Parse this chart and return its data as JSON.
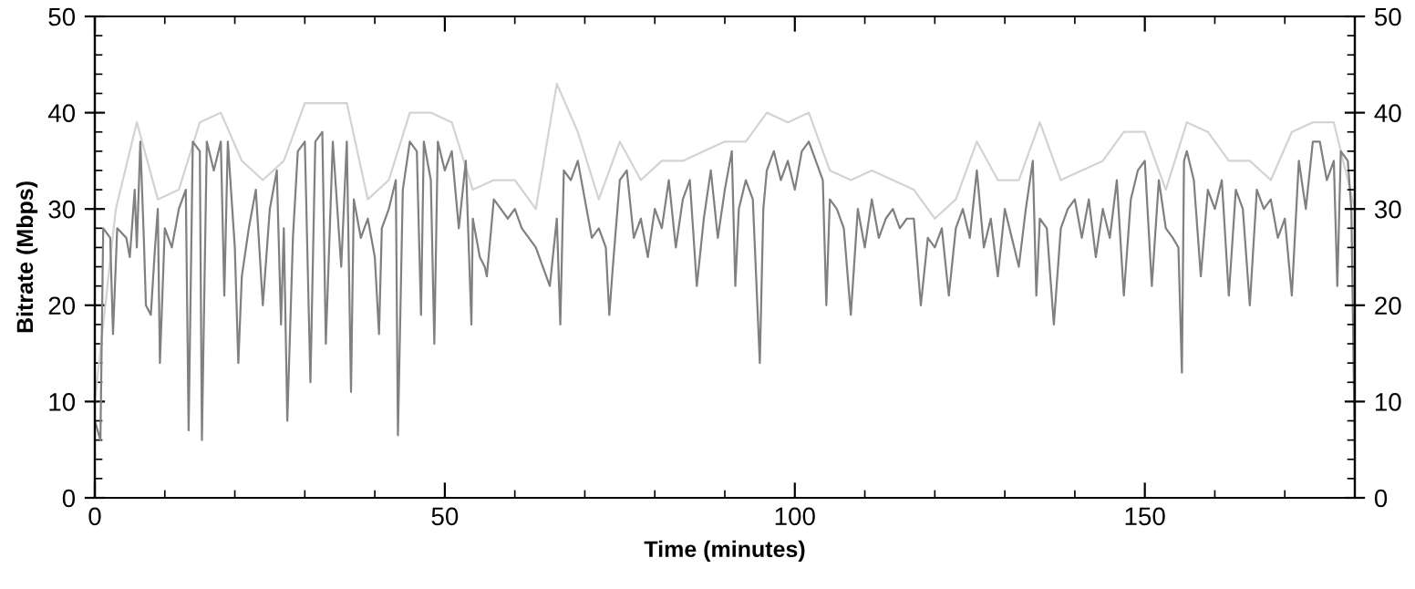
{
  "chart_data": {
    "type": "line",
    "xlabel": "Time (minutes)",
    "ylabel": "Bitrate (Mbps)",
    "xlim": [
      0,
      180
    ],
    "xticks": [
      0,
      50,
      100,
      150
    ],
    "ylim": [
      0,
      50
    ],
    "yticks": [
      0,
      10,
      20,
      30,
      40,
      50
    ],
    "y2lim": [
      0,
      50
    ],
    "y2ticks": [
      0,
      10,
      20,
      30,
      40,
      50
    ],
    "grid": false,
    "line_style": "solid",
    "marker": "none",
    "series": [
      {
        "color": "#d3d3d3",
        "x": [
          0,
          3,
          6,
          9,
          12,
          15,
          18,
          21,
          24,
          27,
          30,
          33,
          36,
          39,
          42,
          45,
          48,
          51,
          54,
          57,
          60,
          63,
          66,
          69,
          72,
          75,
          78,
          81,
          84,
          87,
          90,
          93,
          96,
          99,
          102,
          105,
          108,
          111,
          114,
          117,
          120,
          123,
          126,
          129,
          132,
          135,
          138,
          141,
          144,
          147,
          150,
          153,
          156,
          159,
          162,
          165,
          168,
          171,
          174,
          177,
          180
        ],
        "values": [
          10,
          30,
          39,
          31,
          32,
          39,
          40,
          35,
          33,
          35,
          41,
          41,
          41,
          31,
          33,
          40,
          40,
          39,
          32,
          33,
          33,
          30,
          43,
          38,
          31,
          37,
          33,
          35,
          35,
          36,
          37,
          37,
          40,
          39,
          40,
          34,
          33,
          34,
          33,
          32,
          29,
          31,
          37,
          33,
          33,
          39,
          33,
          34,
          35,
          38,
          38,
          32,
          39,
          38,
          35,
          35,
          33,
          38,
          39,
          39,
          30
        ]
      },
      {
        "color": "#808080",
        "x": [
          0,
          0.8,
          1.2,
          2.2,
          2.6,
          3.2,
          4.5,
          5,
          5.7,
          6,
          6.5,
          7,
          7.3,
          8,
          8.6,
          9,
          9.3,
          10,
          11,
          12,
          13,
          13.4,
          14,
          15,
          15.3,
          16,
          17,
          18,
          18.5,
          19,
          20,
          20.5,
          21,
          22,
          23,
          24,
          25,
          26,
          26.6,
          27,
          27.5,
          28.3,
          29,
          30,
          30.8,
          31.5,
          32.5,
          33,
          34,
          35.2,
          36,
          36.6,
          37,
          38,
          39,
          40,
          40.6,
          41,
          42,
          43,
          43.3,
          44,
          45,
          46,
          46.6,
          47,
          48,
          48.5,
          49,
          50,
          51,
          52,
          53,
          53.8,
          54,
          55,
          55.7,
          56,
          57,
          58,
          59,
          60,
          61,
          62,
          63,
          64,
          65,
          66,
          66.5,
          67,
          68,
          69,
          70,
          71,
          72,
          73,
          73.5,
          74,
          75,
          76,
          77,
          78,
          79,
          80,
          81,
          82,
          83,
          84,
          85,
          86,
          87,
          88,
          89,
          90,
          91,
          91.5,
          92,
          93,
          94,
          95,
          95.5,
          96,
          97,
          98,
          99,
          100,
          101,
          102,
          103,
          104,
          104.5,
          105,
          106,
          107,
          108,
          109,
          110,
          111,
          112,
          113,
          114,
          115,
          116,
          117,
          118,
          119,
          120,
          121,
          122,
          123,
          124,
          125,
          126,
          127,
          128,
          129,
          130,
          131,
          132,
          133,
          134,
          134.5,
          135,
          136,
          137,
          138,
          139,
          140,
          141,
          142,
          143,
          144,
          145,
          146,
          147,
          148,
          149,
          150,
          151,
          152,
          153,
          154,
          154.8,
          155.3,
          155.6,
          156,
          157,
          158,
          159,
          160,
          161,
          162,
          163,
          164,
          165,
          166,
          167,
          168,
          169,
          170,
          171,
          172,
          173,
          174,
          175,
          176,
          177,
          177.5,
          178,
          179,
          179.5,
          180
        ],
        "values": [
          8,
          6,
          28,
          27,
          17,
          28,
          27,
          25,
          32,
          26,
          37,
          27,
          20,
          19,
          26,
          30,
          14,
          28,
          26,
          30,
          32,
          7,
          37,
          36,
          6,
          37,
          34,
          37,
          21,
          37,
          26,
          14,
          23,
          28,
          32,
          20,
          30,
          34,
          18,
          28,
          8,
          27,
          36,
          37,
          12,
          37,
          38,
          16,
          37,
          24,
          37,
          11,
          31,
          27,
          29,
          25,
          17,
          28,
          30,
          33,
          6.5,
          32,
          37,
          36,
          19,
          37,
          33,
          16,
          37,
          34,
          36,
          28,
          35,
          18,
          29,
          25,
          24,
          23,
          31,
          30,
          29,
          30,
          28,
          27,
          26,
          24,
          22,
          29,
          18,
          34,
          33,
          35,
          31,
          27,
          28,
          26,
          19,
          24,
          33,
          34,
          27,
          29,
          25,
          30,
          28,
          33,
          26,
          31,
          33,
          22,
          29,
          34,
          27,
          32,
          36,
          22,
          30,
          33,
          31,
          14,
          30,
          34,
          36,
          33,
          35,
          32,
          36,
          37,
          35,
          33,
          20,
          31,
          30,
          28,
          19,
          30,
          26,
          31,
          27,
          29,
          30,
          28,
          29,
          29,
          20,
          27,
          26,
          28,
          21,
          28,
          30,
          27,
          34,
          26,
          29,
          23,
          30,
          27,
          24,
          30,
          35,
          21,
          29,
          28,
          18,
          28,
          30,
          31,
          27,
          31,
          25,
          30,
          27,
          33,
          21,
          31,
          34,
          35,
          22,
          33,
          28,
          27,
          26,
          13,
          35,
          36,
          33,
          23,
          32,
          30,
          33,
          21,
          32,
          30,
          20,
          32,
          30,
          31,
          27,
          29,
          21,
          35,
          30,
          37,
          37,
          33,
          35,
          22,
          36,
          35,
          30,
          5
        ]
      }
    ]
  }
}
